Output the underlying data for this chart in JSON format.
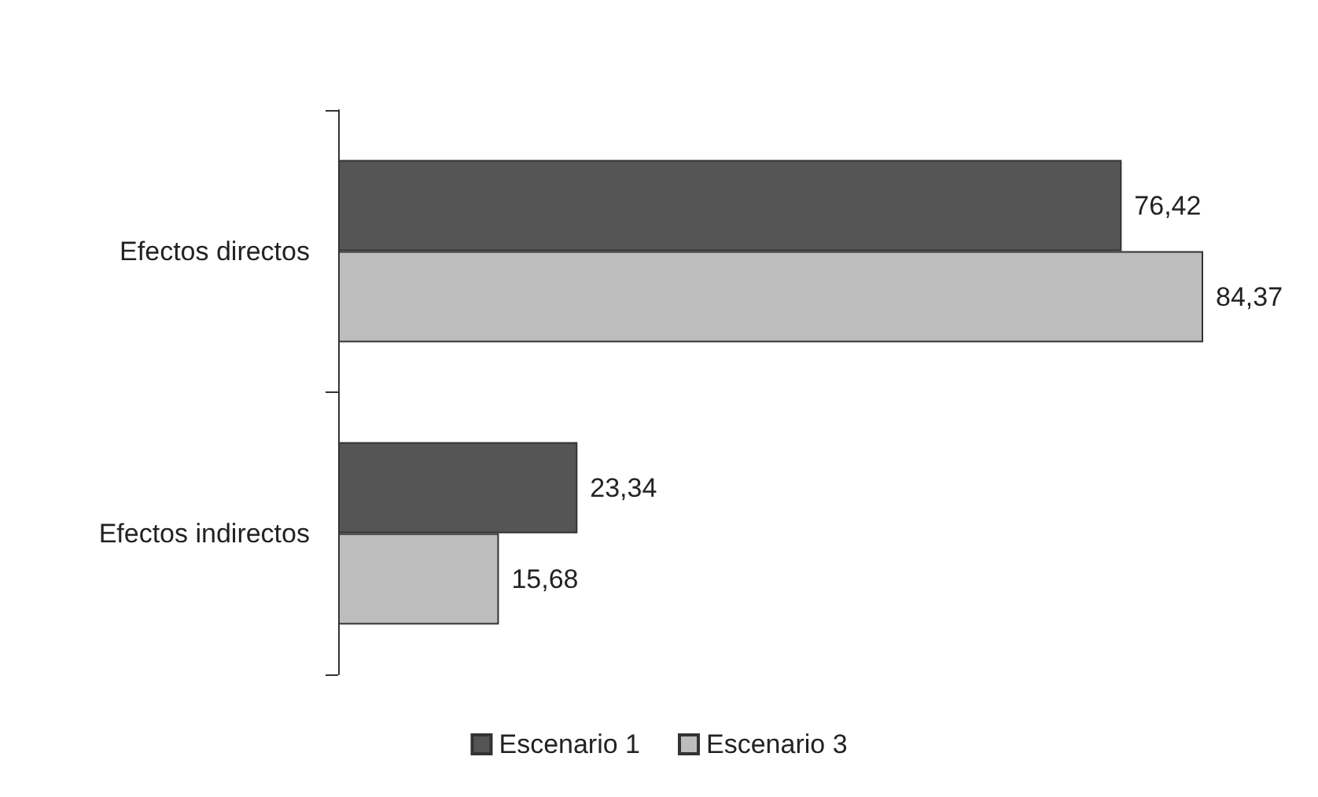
{
  "chart_data": {
    "type": "bar",
    "orientation": "horizontal",
    "categories": [
      "Efectos directos",
      "Efectos indirectos"
    ],
    "series": [
      {
        "name": "Escenario 1",
        "color": "#555555",
        "values": [
          76.42,
          23.34
        ],
        "value_labels": [
          "76,42",
          "23,34"
        ]
      },
      {
        "name": "Escenario 3",
        "color": "#bdbdbd",
        "values": [
          84.37,
          15.68
        ],
        "value_labels": [
          "84,37",
          "15,68"
        ]
      }
    ],
    "legend": "bottom"
  }
}
